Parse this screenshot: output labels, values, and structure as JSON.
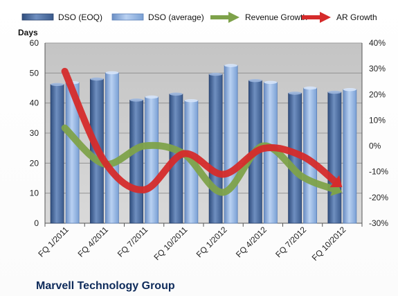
{
  "chart_data": {
    "type": "bar",
    "title": "Marvell Technology Group",
    "ylabel": "Days",
    "ylim": [
      0,
      60
    ],
    "y_ticks": [
      0,
      10,
      20,
      30,
      40,
      50,
      60
    ],
    "y2lim": [
      -30,
      40
    ],
    "y2_ticks": [
      "-30%",
      "-20%",
      "-10%",
      "0%",
      "10%",
      "20%",
      "30%",
      "40%"
    ],
    "categories": [
      "FQ 1/2011",
      "FQ 4/2011",
      "FQ 7/2011",
      "FQ 10/2011",
      "FQ 1/2012",
      "FQ 4/2012",
      "FQ 7/2012",
      "FQ 10/2012"
    ],
    "grid": true,
    "legend_position": "top",
    "series": [
      {
        "name": "DSO (EOQ)",
        "kind": "bar",
        "axis": "left",
        "color": "#4a6b9e",
        "values": [
          46.2,
          48.0,
          41.0,
          43.0,
          49.6,
          47.5,
          43.3,
          43.6
        ]
      },
      {
        "name": "DSO (average)",
        "kind": "bar",
        "axis": "left",
        "color": "#8fb0e0",
        "values": [
          46.8,
          50.1,
          42.0,
          40.8,
          52.5,
          46.9,
          45.0,
          44.5
        ]
      },
      {
        "name": "Revenue Growth",
        "kind": "line",
        "axis": "right",
        "color": "#7ea24a",
        "values": [
          7,
          -7,
          0,
          -3,
          -18,
          0,
          -12,
          -18
        ]
      },
      {
        "name": "AR Growth",
        "kind": "line",
        "axis": "right",
        "color": "#d52b2b",
        "values": [
          29,
          -6,
          -17,
          -3,
          -11,
          -1,
          -4,
          -16
        ]
      }
    ]
  }
}
